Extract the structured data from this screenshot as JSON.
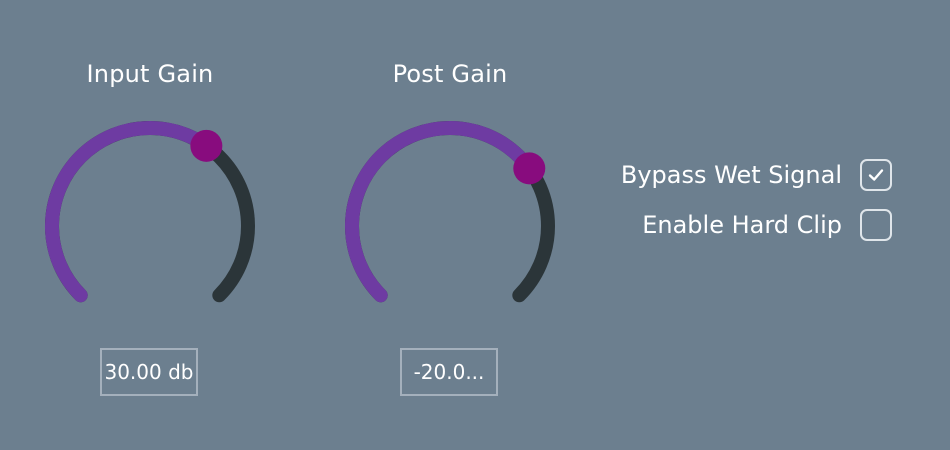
{
  "colors": {
    "background": "#6c7f8f",
    "arc_filled": "#6e3ba2",
    "arc_track": "#2b3539",
    "thumb": "#880c7e",
    "text": "#ffffff"
  },
  "knobs": [
    {
      "title": "Input Gain",
      "value_display": "30.00 db",
      "level_fraction": 0.63
    },
    {
      "title": "Post Gain",
      "value_display": "-20.0...",
      "level_fraction": 0.7
    }
  ],
  "toggles": [
    {
      "label": "Bypass Wet Signal",
      "checked": true,
      "icon": "check-icon"
    },
    {
      "label": "Enable Hard Clip",
      "checked": false
    }
  ]
}
